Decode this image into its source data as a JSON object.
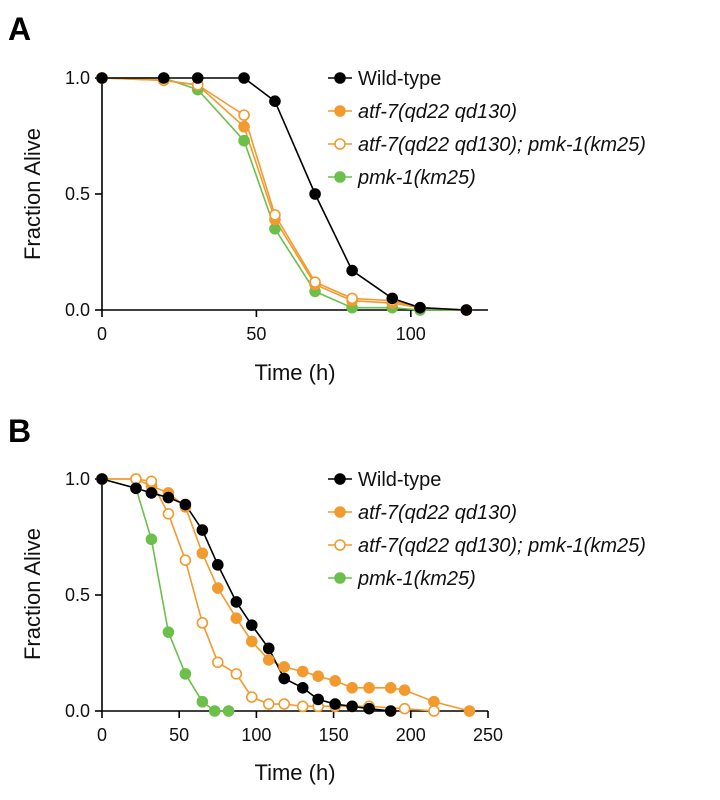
{
  "chart_data": [
    {
      "panel": "A",
      "type": "line",
      "xlabel": "Time (h)",
      "ylabel": "Fraction Alive",
      "xlim": [
        0,
        125
      ],
      "ylim": [
        0,
        1.0
      ],
      "xticks": [
        0,
        50,
        100
      ],
      "yticks": [
        0.0,
        0.5,
        1.0
      ],
      "ytick_labels": [
        "0.0",
        "0.5",
        "1.0"
      ],
      "grid": false,
      "legend_position": "top-right",
      "series": [
        {
          "name": "Wild-type",
          "italic": false,
          "color": "#000000",
          "filled": true,
          "x": [
            0,
            20,
            31,
            46,
            56,
            69,
            81,
            94,
            103,
            118
          ],
          "y": [
            1.0,
            1.0,
            1.0,
            1.0,
            0.9,
            0.5,
            0.17,
            0.05,
            0.01,
            0.0
          ]
        },
        {
          "name": "atf-7(qd22 qd130)",
          "italic": true,
          "color": "#F29A2E",
          "filled": true,
          "x": [
            0,
            20,
            31,
            46,
            56,
            69,
            81,
            94,
            103,
            118
          ],
          "y": [
            1.0,
            0.99,
            0.97,
            0.79,
            0.39,
            0.11,
            0.04,
            0.03,
            0.01,
            0.0
          ]
        },
        {
          "name": "atf-7(qd22 qd130); pmk-1(km25)",
          "italic": true,
          "color": "#F29A2E",
          "filled": false,
          "x": [
            0,
            20,
            31,
            46,
            56,
            69,
            81,
            94,
            103,
            118
          ],
          "y": [
            1.0,
            0.99,
            0.97,
            0.84,
            0.41,
            0.12,
            0.05,
            0.04,
            0.01,
            0.0
          ]
        },
        {
          "name": "pmk-1(km25)",
          "italic": true,
          "color": "#6CBF4A",
          "filled": true,
          "x": [
            0,
            20,
            31,
            46,
            56,
            69,
            81,
            94,
            103,
            118
          ],
          "y": [
            1.0,
            1.0,
            0.95,
            0.73,
            0.35,
            0.08,
            0.01,
            0.01,
            0.0,
            0.0
          ]
        }
      ]
    },
    {
      "panel": "B",
      "type": "line",
      "xlabel": "Time (h)",
      "ylabel": "Fraction Alive",
      "xlim": [
        0,
        250
      ],
      "ylim": [
        0,
        1.0
      ],
      "xticks": [
        0,
        50,
        100,
        150,
        200,
        250
      ],
      "yticks": [
        0.0,
        0.5,
        1.0
      ],
      "ytick_labels": [
        "0.0",
        "0.5",
        "1.0"
      ],
      "grid": false,
      "legend_position": "top-right",
      "series": [
        {
          "name": "Wild-type",
          "italic": false,
          "color": "#000000",
          "filled": true,
          "x": [
            0,
            22,
            32,
            43,
            54,
            65,
            75,
            87,
            97,
            108,
            118,
            130,
            140,
            151,
            162,
            173,
            187
          ],
          "y": [
            1.0,
            0.96,
            0.94,
            0.92,
            0.89,
            0.78,
            0.63,
            0.47,
            0.37,
            0.27,
            0.14,
            0.1,
            0.05,
            0.03,
            0.02,
            0.01,
            0.0
          ]
        },
        {
          "name": "atf-7(qd22 qd130)",
          "italic": true,
          "color": "#F29A2E",
          "filled": true,
          "x": [
            0,
            22,
            32,
            43,
            54,
            65,
            75,
            87,
            97,
            108,
            118,
            130,
            140,
            151,
            162,
            173,
            187,
            196,
            215,
            238
          ],
          "y": [
            1.0,
            1.0,
            0.97,
            0.94,
            0.88,
            0.68,
            0.53,
            0.4,
            0.3,
            0.22,
            0.19,
            0.17,
            0.15,
            0.13,
            0.1,
            0.1,
            0.1,
            0.09,
            0.04,
            0.0
          ]
        },
        {
          "name": "atf-7(qd22 qd130); pmk-1(km25)",
          "italic": true,
          "color": "#F29A2E",
          "filled": false,
          "x": [
            0,
            22,
            32,
            43,
            54,
            65,
            75,
            87,
            97,
            108,
            118,
            130,
            140,
            151,
            162,
            173,
            196,
            215
          ],
          "y": [
            1.0,
            1.0,
            0.99,
            0.85,
            0.65,
            0.38,
            0.21,
            0.16,
            0.06,
            0.03,
            0.03,
            0.02,
            0.02,
            0.02,
            0.02,
            0.02,
            0.01,
            0.0
          ]
        },
        {
          "name": "pmk-1(km25)",
          "italic": true,
          "color": "#6CBF4A",
          "filled": true,
          "x": [
            0,
            22,
            32,
            43,
            54,
            65,
            73,
            82
          ],
          "y": [
            1.0,
            0.96,
            0.74,
            0.34,
            0.16,
            0.04,
            0.0,
            0.0
          ]
        }
      ]
    }
  ]
}
